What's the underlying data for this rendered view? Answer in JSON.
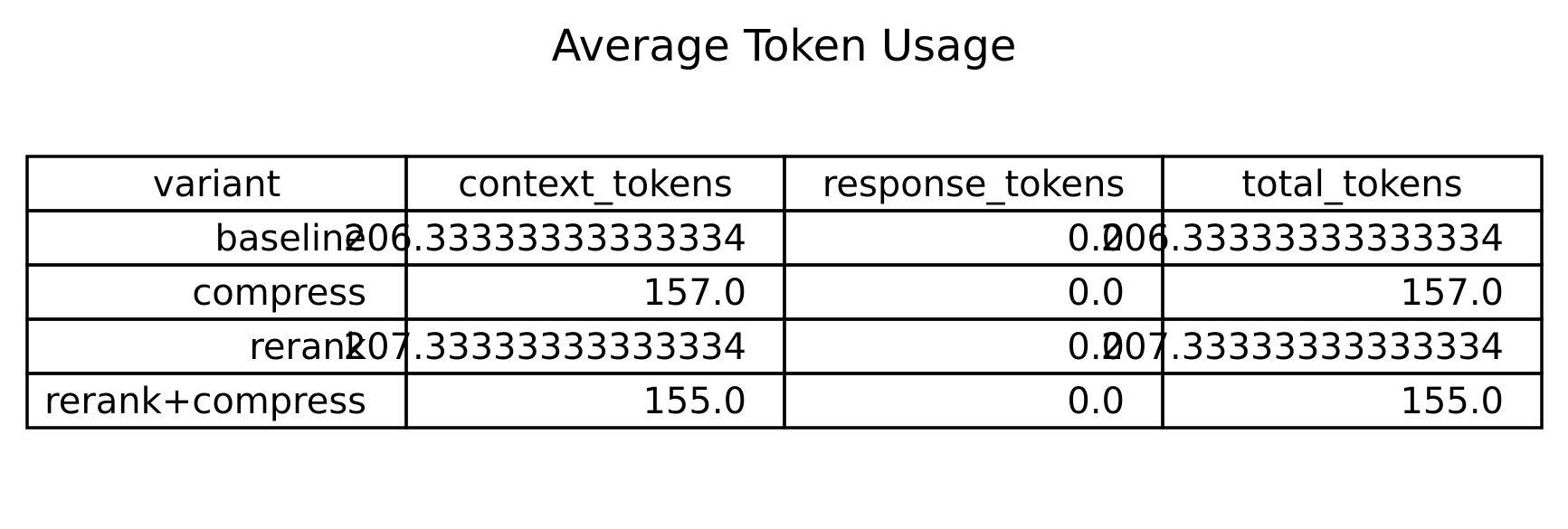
{
  "chart_data": {
    "type": "table",
    "title": "Average Token Usage",
    "columns": [
      "variant",
      "context_tokens",
      "response_tokens",
      "total_tokens"
    ],
    "rows": [
      [
        "baseline",
        "206.33333333333334",
        "0.0",
        "206.33333333333334"
      ],
      [
        "compress",
        "157.0",
        "0.0",
        "157.0"
      ],
      [
        "rerank",
        "207.33333333333334",
        "0.0",
        "207.33333333333334"
      ],
      [
        "rerank+compress",
        "155.0",
        "0.0",
        "155.0"
      ]
    ]
  }
}
